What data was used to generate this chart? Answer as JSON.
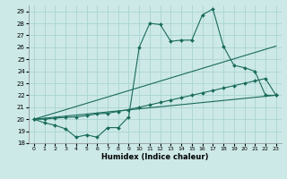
{
  "xlabel": "Humidex (Indice chaleur)",
  "xlim": [
    -0.5,
    23.5
  ],
  "ylim": [
    18,
    29.5
  ],
  "yticks": [
    18,
    19,
    20,
    21,
    22,
    23,
    24,
    25,
    26,
    27,
    28,
    29
  ],
  "xticks": [
    0,
    1,
    2,
    3,
    4,
    5,
    6,
    7,
    8,
    9,
    10,
    11,
    12,
    13,
    14,
    15,
    16,
    17,
    18,
    19,
    20,
    21,
    22,
    23
  ],
  "bg_color": "#cce9e7",
  "grid_color": "#aad4d2",
  "line_color": "#1a6b5a",
  "line1_x": [
    0,
    1,
    2,
    3,
    4,
    5,
    6,
    7,
    8,
    9,
    10,
    11,
    12,
    13,
    14,
    15,
    16,
    17,
    18,
    19,
    20,
    21,
    22,
    23
  ],
  "line1_y": [
    20.0,
    19.7,
    19.5,
    19.2,
    18.5,
    18.7,
    18.5,
    19.3,
    19.3,
    20.2,
    26.0,
    28.0,
    27.9,
    26.5,
    26.6,
    26.6,
    28.7,
    29.2,
    26.1,
    24.5,
    24.3,
    24.0,
    22.0,
    22.0
  ],
  "line2_x": [
    0,
    23
  ],
  "line2_y": [
    20.0,
    26.1
  ],
  "line3_x": [
    0,
    23
  ],
  "line3_y": [
    20.0,
    22.0
  ],
  "line4_x": [
    0,
    1,
    2,
    3,
    4,
    5,
    6,
    7,
    8,
    9,
    10,
    11,
    12,
    13,
    14,
    15,
    16,
    17,
    18,
    19,
    20,
    21,
    22,
    23
  ],
  "line4_y": [
    20.0,
    20.0,
    20.1,
    20.15,
    20.2,
    20.3,
    20.45,
    20.5,
    20.65,
    20.8,
    21.0,
    21.2,
    21.4,
    21.6,
    21.8,
    22.0,
    22.2,
    22.4,
    22.6,
    22.8,
    23.0,
    23.2,
    23.4,
    22.0
  ]
}
